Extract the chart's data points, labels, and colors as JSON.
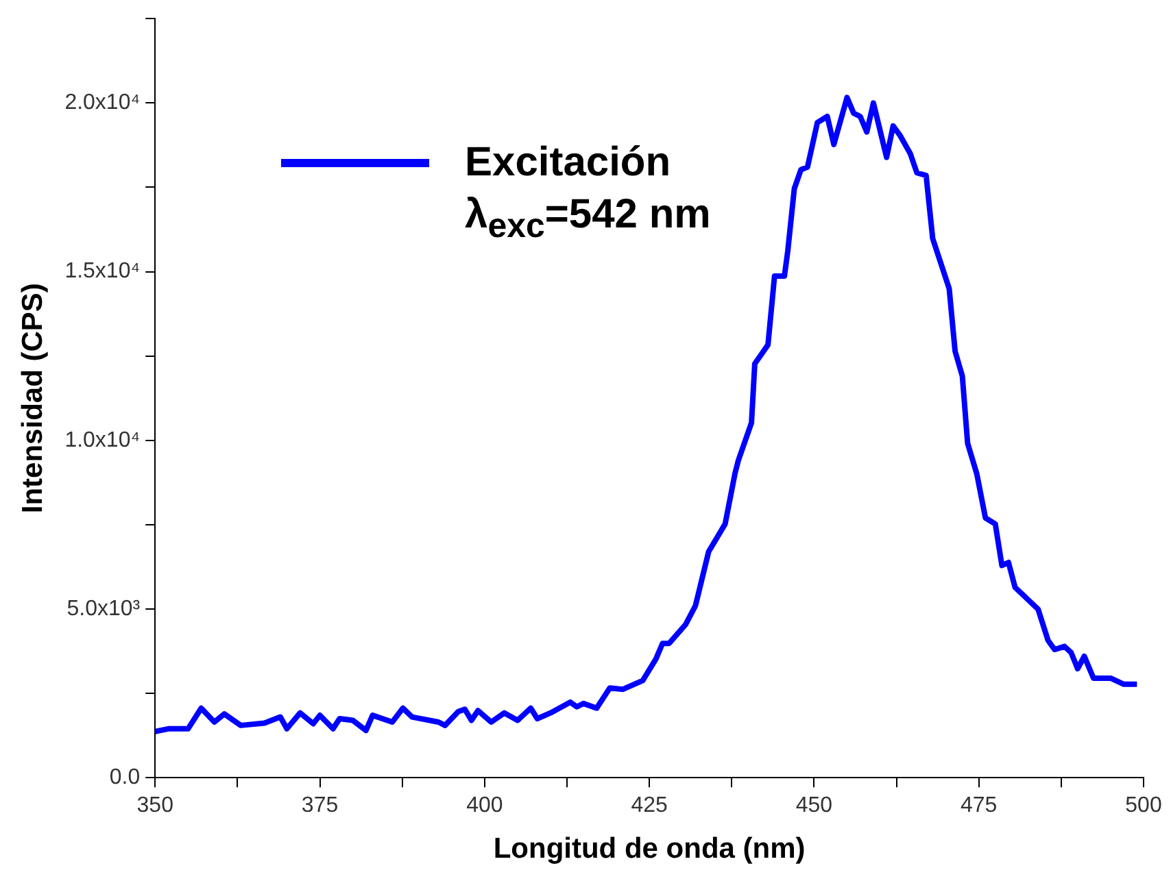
{
  "chart_data": {
    "type": "line",
    "xlabel": "Longitud de onda (nm)",
    "ylabel": "Intensidad (CPS)",
    "xlim": [
      350,
      500
    ],
    "ylim": [
      0,
      22500
    ],
    "xticks": [
      350,
      {
        "value": 362.5,
        "label": null
      },
      375,
      {
        "value": 387.5,
        "label": null
      },
      400,
      {
        "value": 412.5,
        "label": null
      },
      425,
      {
        "value": 437.5,
        "label": null
      },
      450,
      {
        "value": 462.5,
        "label": null
      },
      475,
      {
        "value": 487.5,
        "label": null
      },
      500
    ],
    "yticks": [
      {
        "value": 0,
        "label": "0.0"
      },
      {
        "value": 2500,
        "label": null
      },
      {
        "value": 5000,
        "label": "5.0x10³"
      },
      {
        "value": 7500,
        "label": null
      },
      {
        "value": 10000,
        "label": "1.0x10⁴"
      },
      {
        "value": 12500,
        "label": null
      },
      {
        "value": 15000,
        "label": "1.5x10⁴"
      },
      {
        "value": 17500,
        "label": null
      },
      {
        "value": 20000,
        "label": "2.0x10⁴"
      },
      {
        "value": 22500,
        "label": null
      }
    ],
    "grid": false,
    "legend": "top left",
    "marker": "none",
    "line_style": "solid",
    "annotations": [
      "λ$_{exc}$=542 nm"
    ],
    "series": [
      {
        "name": "Excitación",
        "color": "#0000ff",
        "x": [
          350,
          352,
          355,
          357,
          359,
          360.5,
          363,
          366.6,
          369,
          370,
          372,
          374,
          375,
          377,
          378,
          380,
          382,
          383,
          386,
          387.6,
          389,
          393,
          394,
          396,
          397,
          398,
          399,
          401,
          403,
          405,
          407,
          408,
          410,
          413,
          414,
          415,
          417,
          419,
          421,
          424,
          426,
          427,
          428,
          430.5,
          432,
          434,
          436.5,
          438,
          438.5,
          440.5,
          441,
          443,
          444,
          445.5,
          446,
          447,
          448,
          449,
          450.5,
          452,
          453,
          455,
          456,
          457,
          458,
          459,
          461,
          462,
          463,
          464.6,
          465.6,
          467,
          468,
          470.5,
          471.4,
          472.5,
          473.3,
          474.7,
          476,
          477.5,
          478.5,
          479.5,
          480.5,
          482.5,
          484,
          485.5,
          486.5,
          488,
          489,
          490,
          491,
          492.4,
          495,
          497,
          499
        ],
        "values": [
          1370,
          1450,
          1450,
          2060,
          1650,
          1890,
          1550,
          1620,
          1800,
          1450,
          1920,
          1600,
          1850,
          1450,
          1750,
          1700,
          1400,
          1850,
          1650,
          2060,
          1800,
          1650,
          1550,
          1960,
          2030,
          1700,
          1990,
          1650,
          1920,
          1700,
          2060,
          1750,
          1920,
          2240,
          2100,
          2200,
          2060,
          2660,
          2620,
          2880,
          3520,
          3980,
          3980,
          4540,
          5100,
          6700,
          7520,
          9020,
          9400,
          10520,
          12270,
          12830,
          14870,
          14870,
          15600,
          17460,
          18020,
          18100,
          19420,
          19600,
          18770,
          20160,
          19700,
          19600,
          19140,
          20000,
          18390,
          19320,
          19050,
          18500,
          17930,
          17850,
          15980,
          14500,
          12640,
          11900,
          9910,
          9000,
          7700,
          7520,
          6290,
          6380,
          5640,
          5270,
          4990,
          4070,
          3800,
          3890,
          3710,
          3230,
          3600,
          2950,
          2950,
          2770,
          2770
        ]
      }
    ]
  }
}
